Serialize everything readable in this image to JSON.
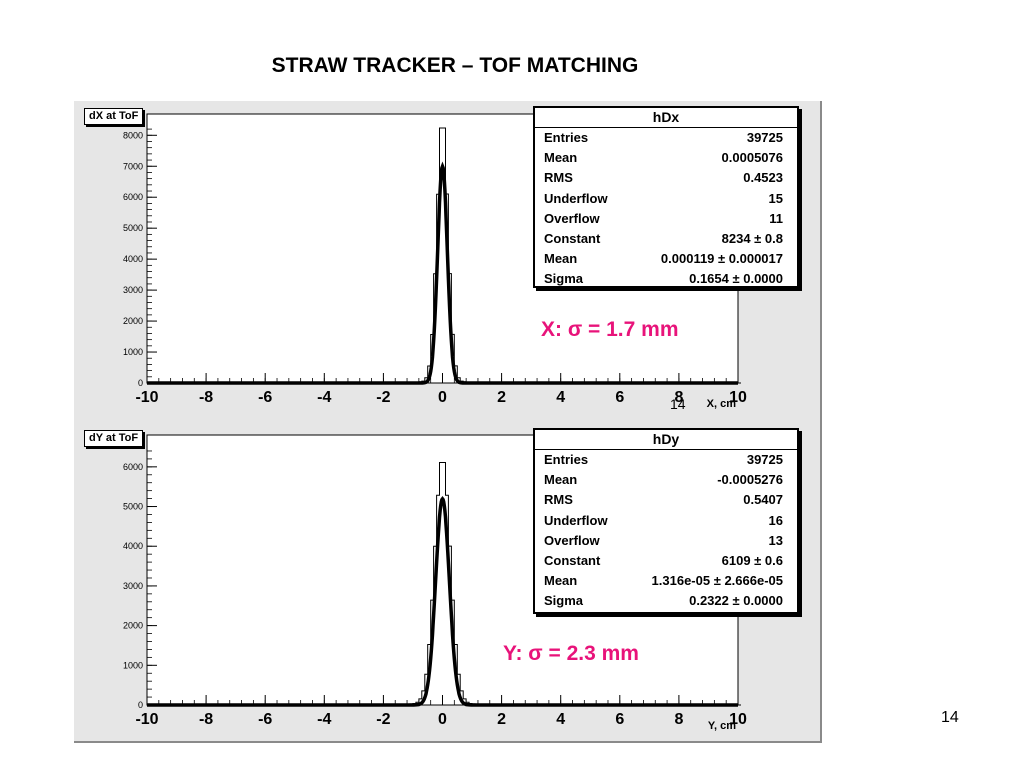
{
  "slide": {
    "title": "STRAW TRACKER – TOF MATCHING",
    "page_number": "14"
  },
  "chart_data": [
    {
      "type": "histogram",
      "title": "dX at ToF",
      "xlabel": "X, cm",
      "xlim": [
        -10,
        10
      ],
      "ylim": [
        0,
        8300
      ],
      "xticks": [
        "-10",
        "-8",
        "-6",
        "-4",
        "-2",
        "0",
        "2",
        "4",
        "6",
        "8",
        "10"
      ],
      "yticks": [
        "0",
        "1000",
        "2000",
        "3000",
        "4000",
        "5000",
        "6000",
        "7000",
        "8000"
      ],
      "peak_value": 8234,
      "fit_sigma": 0.1654,
      "fit_mean": 0.000119,
      "stray_label": "14",
      "annotation": "X: σ = 1.7 mm",
      "stats": {
        "name": "hDx",
        "rows": [
          {
            "key": "Entries",
            "value": "39725"
          },
          {
            "key": "Mean",
            "value": "0.0005076"
          },
          {
            "key": "RMS",
            "value": "0.4523"
          },
          {
            "key": "Underflow",
            "value": "15"
          },
          {
            "key": "Overflow",
            "value": "11"
          },
          {
            "key": "Constant",
            "value": "8234 ± 0.8"
          },
          {
            "key": "Mean",
            "value": "0.000119 ± 0.000017"
          },
          {
            "key": "Sigma",
            "value": "0.1654 ± 0.0000"
          }
        ]
      }
    },
    {
      "type": "histogram",
      "title": "dY at ToF",
      "xlabel": "Y, cm",
      "xlim": [
        -10,
        10
      ],
      "ylim": [
        0,
        6500
      ],
      "xticks": [
        "-10",
        "-8",
        "-6",
        "-4",
        "-2",
        "0",
        "2",
        "4",
        "6",
        "8",
        "10"
      ],
      "yticks": [
        "0",
        "1000",
        "2000",
        "3000",
        "4000",
        "5000",
        "6000"
      ],
      "peak_value": 6109,
      "fit_sigma": 0.2322,
      "fit_mean": 1.316e-05,
      "annotation": "Y: σ = 2.3 mm",
      "stats": {
        "name": "hDy",
        "rows": [
          {
            "key": "Entries",
            "value": "39725"
          },
          {
            "key": "Mean",
            "value": "-0.0005276"
          },
          {
            "key": "RMS",
            "value": "0.5407"
          },
          {
            "key": "Underflow",
            "value": "16"
          },
          {
            "key": "Overflow",
            "value": "13"
          },
          {
            "key": "Constant",
            "value": "6109 ± 0.6"
          },
          {
            "key": "Mean",
            "value": "1.316e-05 ± 2.666e-05"
          },
          {
            "key": "Sigma",
            "value": "0.2322 ± 0.0000"
          }
        ]
      }
    }
  ],
  "colors": {
    "annotation": "#e8137a",
    "frame": "#e6e6e6",
    "histogram": "#000000"
  }
}
